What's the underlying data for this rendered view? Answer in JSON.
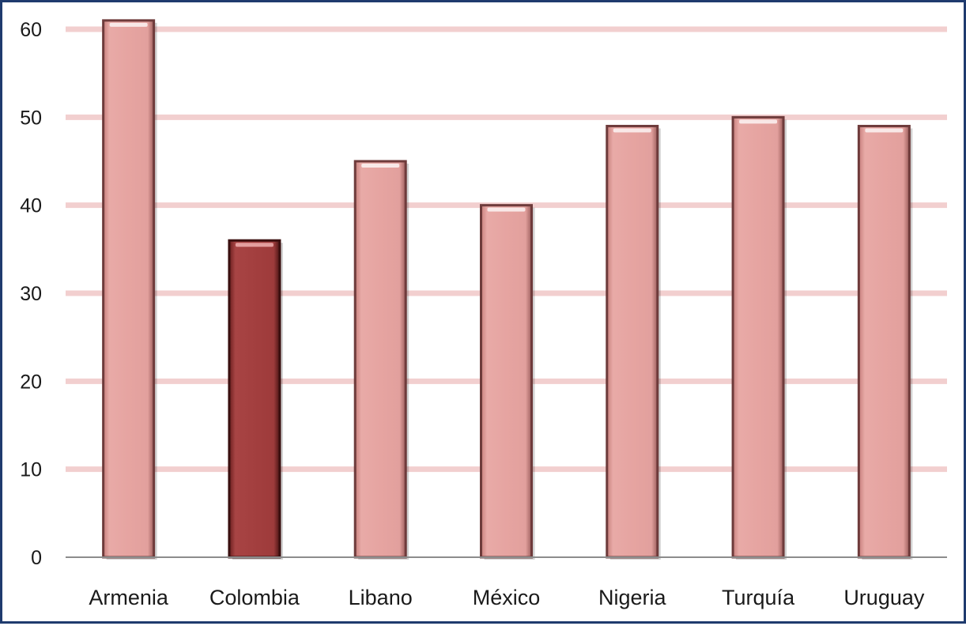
{
  "chart_data": {
    "type": "bar",
    "title": "",
    "xlabel": "",
    "ylabel": "",
    "categories": [
      "Armenia",
      "Colombia",
      "Libano",
      "México",
      "Nigeria",
      "Turquía",
      "Uruguay"
    ],
    "values": [
      61,
      36,
      45,
      40,
      49,
      50,
      49
    ],
    "highlight_category": "Colombia",
    "ylim": [
      0,
      60
    ],
    "yticks": [
      0,
      10,
      20,
      30,
      40,
      50,
      60
    ],
    "grid": true,
    "legend": "none",
    "colors": {
      "bar": "#e5a3a0",
      "bar_edge": "#6e3b3b",
      "highlight_bar": "#a33f3f",
      "highlight_edge": "#3a0f0f",
      "gridline": "#f2cfcf",
      "axis": "#8c8c8c",
      "frame": "#1f3b6e"
    }
  }
}
